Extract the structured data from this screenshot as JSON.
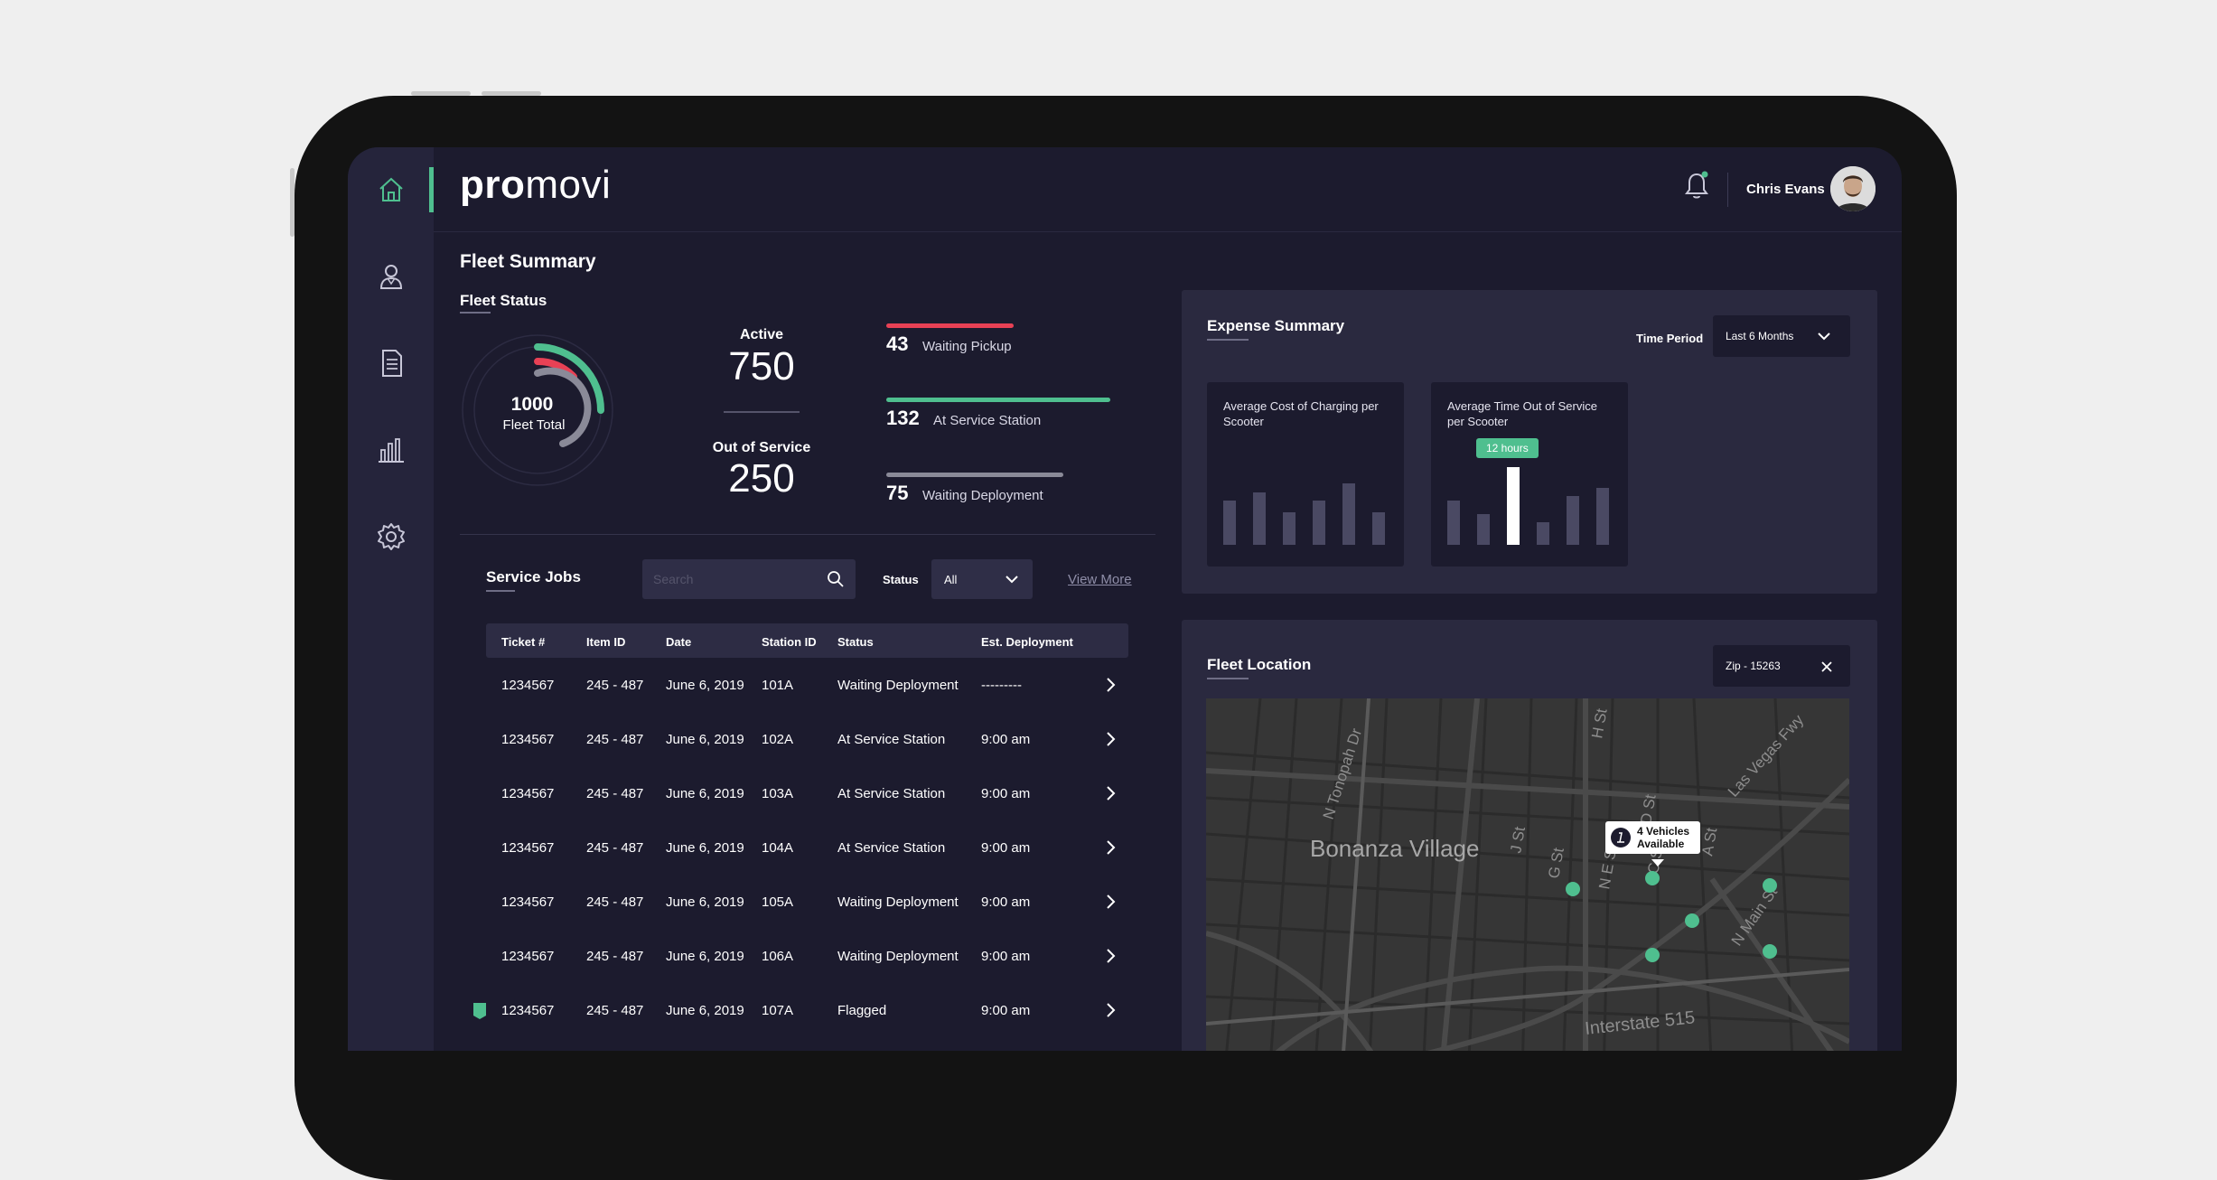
{
  "app": {
    "logo_bold": "pro",
    "logo_rest": "movi"
  },
  "header": {
    "user_name": "Chris Evans",
    "notification_dot": "#4fbf8f"
  },
  "sidebar": {
    "items": [
      {
        "name": "home",
        "icon": "home-icon"
      },
      {
        "name": "users",
        "icon": "user-icon"
      },
      {
        "name": "documents",
        "icon": "document-icon"
      },
      {
        "name": "reports",
        "icon": "bar-chart-icon"
      },
      {
        "name": "settings",
        "icon": "gear-icon"
      }
    ]
  },
  "page": {
    "title": "Fleet Summary"
  },
  "fleet_status": {
    "title": "Fleet Status",
    "total_value": "1000",
    "total_label": "Fleet Total",
    "active_label": "Active",
    "active_value": "750",
    "out_label": "Out of Service",
    "out_value": "250",
    "breakdown": [
      {
        "value": "43",
        "label": "Waiting Pickup",
        "color": "#e84155",
        "fraction": 0.57
      },
      {
        "value": "132",
        "label": "At Service Station",
        "color": "#4fbf8f",
        "fraction": 1.0
      },
      {
        "value": "75",
        "label": "Waiting Deployment",
        "color": "#8a8a98",
        "fraction": 0.79
      }
    ]
  },
  "service_jobs": {
    "title": "Service Jobs",
    "search_placeholder": "Search",
    "status_label": "Status",
    "status_value": "All",
    "view_more": "View More",
    "columns": [
      "Ticket #",
      "Item ID",
      "Date",
      "Station ID",
      "Status",
      "Est. Deployment"
    ],
    "rows": [
      {
        "ticket": "1234567",
        "item": "245 - 487",
        "date": "June 6, 2019",
        "station": "101A",
        "status": "Waiting Deployment",
        "est": "---------",
        "flagged": false
      },
      {
        "ticket": "1234567",
        "item": "245 - 487",
        "date": "June 6, 2019",
        "station": "102A",
        "status": "At Service Station",
        "est": "9:00 am",
        "flagged": false
      },
      {
        "ticket": "1234567",
        "item": "245 - 487",
        "date": "June 6, 2019",
        "station": "103A",
        "status": "At Service Station",
        "est": "9:00 am",
        "flagged": false
      },
      {
        "ticket": "1234567",
        "item": "245 - 487",
        "date": "June 6, 2019",
        "station": "104A",
        "status": "At Service Station",
        "est": "9:00 am",
        "flagged": false
      },
      {
        "ticket": "1234567",
        "item": "245 - 487",
        "date": "June 6, 2019",
        "station": "105A",
        "status": "Waiting Deployment",
        "est": "9:00 am",
        "flagged": false
      },
      {
        "ticket": "1234567",
        "item": "245 - 487",
        "date": "June 6, 2019",
        "station": "106A",
        "status": "Waiting Deployment",
        "est": "9:00 am",
        "flagged": false
      },
      {
        "ticket": "1234567",
        "item": "245 - 487",
        "date": "June 6, 2019",
        "station": "107A",
        "status": "Flagged",
        "est": "9:00 am",
        "flagged": true
      }
    ]
  },
  "expense": {
    "title": "Expense Summary",
    "period_label": "Time Period",
    "period_value": "Last 6 Months",
    "cards": [
      {
        "title": "Average Cost of Charging per Scooter",
        "values": [
          0.54,
          0.64,
          0.4,
          0.54,
          0.76,
          0.4
        ],
        "highlight": -1,
        "tooltip": ""
      },
      {
        "title": "Average Time Out of Service per Scooter",
        "values": [
          0.54,
          0.38,
          0.96,
          0.28,
          0.6,
          0.7
        ],
        "highlight": 2,
        "tooltip": "12 hours"
      }
    ]
  },
  "location": {
    "title": "Fleet Location",
    "zip_value": "Zip - 15263",
    "map_labels": [
      "Bonanza Village",
      "N Tonopah Dr",
      "H St",
      "D St",
      "Las Vegas Fwy",
      "J St",
      "G St",
      "N E St",
      "C St",
      "A St",
      "N Main St",
      "Interstate 515"
    ],
    "popup": "4 Vehicles Available"
  }
}
